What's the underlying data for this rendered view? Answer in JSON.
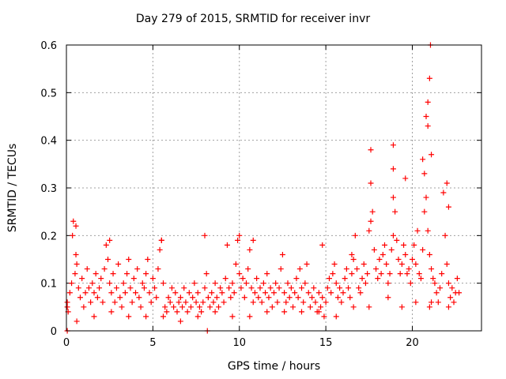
{
  "chart_data": {
    "type": "scatter",
    "title": "Day 279 of 2015, SRMTID for receiver invr",
    "xlabel": "GPS time / hours",
    "ylabel": "SRMTID / TECUs",
    "xlim": [
      0,
      24
    ],
    "ylim": [
      0,
      0.6
    ],
    "xticks": [
      0,
      5,
      10,
      15,
      20
    ],
    "yticks": [
      0,
      0.1,
      0.2,
      0.3,
      0.4,
      0.5,
      0.6
    ],
    "xtick_labels": [
      "0",
      "5",
      "10",
      "15",
      "20"
    ],
    "ytick_labels": [
      "0",
      "0.1",
      "0.2",
      "0.3",
      "0.4",
      "0.5",
      "0.6"
    ],
    "grid": true,
    "marker": "+",
    "series": [
      {
        "name": "SRMTID",
        "color": "#ff0000",
        "x": [
          0.05,
          0.1,
          0.2,
          0.3,
          0.35,
          0.4,
          0.5,
          0.55,
          0.6,
          0.7,
          0.8,
          0.9,
          1.0,
          1.1,
          1.2,
          1.3,
          1.4,
          1.5,
          1.6,
          1.7,
          1.8,
          1.9,
          2.0,
          2.1,
          2.2,
          2.3,
          2.4,
          2.5,
          2.6,
          2.7,
          2.8,
          2.9,
          3.0,
          3.1,
          3.2,
          3.3,
          3.4,
          3.5,
          3.6,
          3.7,
          3.8,
          3.9,
          4.0,
          4.1,
          4.2,
          4.3,
          4.4,
          4.5,
          4.6,
          4.7,
          4.8,
          4.9,
          5.0,
          5.1,
          5.2,
          5.3,
          5.4,
          5.5,
          5.6,
          5.7,
          5.8,
          5.9,
          6.0,
          6.1,
          6.2,
          6.3,
          6.4,
          6.5,
          6.6,
          6.7,
          6.8,
          6.9,
          7.0,
          7.1,
          7.2,
          7.3,
          7.4,
          7.5,
          7.6,
          7.7,
          7.8,
          7.9,
          8.0,
          8.1,
          8.2,
          8.3,
          8.4,
          8.5,
          8.6,
          8.7,
          8.8,
          8.9,
          9.0,
          9.1,
          9.2,
          9.3,
          9.4,
          9.5,
          9.6,
          9.7,
          9.8,
          9.9,
          10.0,
          10.1,
          10.2,
          10.3,
          10.4,
          10.5,
          10.6,
          10.7,
          10.8,
          10.9,
          11.0,
          11.1,
          11.2,
          11.3,
          11.4,
          11.5,
          11.6,
          11.7,
          11.8,
          11.9,
          12.0,
          12.1,
          12.2,
          12.3,
          12.4,
          12.5,
          12.6,
          12.7,
          12.8,
          12.9,
          13.0,
          13.1,
          13.2,
          13.3,
          13.4,
          13.5,
          13.6,
          13.7,
          13.8,
          13.9,
          14.0,
          14.1,
          14.2,
          14.3,
          14.4,
          14.5,
          14.6,
          14.7,
          14.8,
          14.9,
          15.0,
          15.1,
          15.2,
          15.3,
          15.4,
          15.5,
          15.6,
          15.7,
          15.8,
          15.9,
          16.0,
          16.1,
          16.2,
          16.3,
          16.4,
          16.5,
          16.6,
          16.7,
          16.8,
          16.9,
          17.0,
          17.1,
          17.2,
          17.3,
          17.4,
          17.5,
          17.6,
          17.7,
          17.8,
          17.9,
          18.0,
          18.1,
          18.2,
          18.3,
          18.4,
          18.5,
          18.6,
          18.7,
          18.8,
          18.9,
          19.0,
          19.1,
          19.2,
          19.3,
          19.4,
          19.5,
          19.6,
          19.7,
          19.8,
          19.9,
          20.0,
          20.1,
          20.2,
          20.3,
          20.4,
          20.5,
          20.6,
          20.7,
          20.8,
          20.9,
          21.0,
          21.1,
          21.2,
          21.3,
          21.4,
          21.5,
          21.6,
          21.7,
          21.8,
          21.9,
          22.0,
          22.1,
          22.2,
          22.3,
          22.4,
          22.5,
          22.6,
          22.7,
          0.05,
          0.6,
          1.6,
          2.6,
          3.6,
          4.6,
          5.6,
          6.6,
          7.6,
          8.6,
          9.6,
          10.6,
          11.6,
          12.6,
          13.6,
          14.6,
          15.6,
          16.6,
          17.5,
          18.6,
          19.4,
          20.2,
          21.0,
          21.1,
          22.1,
          0.55,
          2.5,
          5.5,
          8.0,
          10.0,
          10.8,
          14.8,
          16.5,
          17.6,
          17.6,
          18.9,
          18.9,
          18.9,
          19.6,
          20.7,
          20.8,
          20.9,
          20.9,
          21.0,
          21.05,
          21.1,
          20.6,
          22.0,
          22.1,
          0.05,
          8.15
        ],
        "y": [
          0.06,
          0.04,
          0.08,
          0.1,
          0.2,
          0.23,
          0.12,
          0.16,
          0.14,
          0.09,
          0.07,
          0.11,
          0.05,
          0.08,
          0.13,
          0.09,
          0.06,
          0.1,
          0.08,
          0.12,
          0.07,
          0.09,
          0.11,
          0.06,
          0.13,
          0.18,
          0.15,
          0.1,
          0.08,
          0.12,
          0.06,
          0.09,
          0.14,
          0.07,
          0.05,
          0.1,
          0.08,
          0.12,
          0.15,
          0.09,
          0.06,
          0.11,
          0.08,
          0.13,
          0.07,
          0.05,
          0.1,
          0.09,
          0.12,
          0.15,
          0.08,
          0.06,
          0.11,
          0.09,
          0.07,
          0.13,
          0.17,
          0.19,
          0.1,
          0.05,
          0.04,
          0.07,
          0.06,
          0.09,
          0.05,
          0.08,
          0.04,
          0.06,
          0.07,
          0.05,
          0.09,
          0.06,
          0.04,
          0.08,
          0.05,
          0.07,
          0.1,
          0.06,
          0.08,
          0.05,
          0.04,
          0.06,
          0.09,
          0.12,
          0.07,
          0.05,
          0.08,
          0.06,
          0.1,
          0.07,
          0.05,
          0.09,
          0.08,
          0.06,
          0.11,
          0.18,
          0.09,
          0.07,
          0.1,
          0.08,
          0.14,
          0.19,
          0.12,
          0.09,
          0.11,
          0.07,
          0.1,
          0.13,
          0.17,
          0.09,
          0.06,
          0.08,
          0.11,
          0.07,
          0.09,
          0.06,
          0.1,
          0.08,
          0.12,
          0.07,
          0.09,
          0.05,
          0.08,
          0.1,
          0.06,
          0.09,
          0.13,
          0.16,
          0.08,
          0.06,
          0.1,
          0.07,
          0.09,
          0.05,
          0.08,
          0.11,
          0.07,
          0.13,
          0.09,
          0.06,
          0.1,
          0.14,
          0.08,
          0.05,
          0.07,
          0.09,
          0.06,
          0.04,
          0.08,
          0.05,
          0.07,
          0.03,
          0.06,
          0.09,
          0.11,
          0.08,
          0.12,
          0.14,
          0.1,
          0.07,
          0.09,
          0.06,
          0.08,
          0.11,
          0.13,
          0.09,
          0.07,
          0.12,
          0.15,
          0.2,
          0.13,
          0.09,
          0.08,
          0.11,
          0.14,
          0.1,
          0.12,
          0.21,
          0.23,
          0.25,
          0.17,
          0.13,
          0.11,
          0.15,
          0.12,
          0.16,
          0.18,
          0.14,
          0.1,
          0.12,
          0.17,
          0.2,
          0.25,
          0.19,
          0.15,
          0.12,
          0.14,
          0.18,
          0.16,
          0.12,
          0.13,
          0.1,
          0.15,
          0.18,
          0.14,
          0.21,
          0.12,
          0.11,
          0.17,
          0.25,
          0.28,
          0.21,
          0.16,
          0.13,
          0.11,
          0.1,
          0.08,
          0.06,
          0.09,
          0.12,
          0.29,
          0.2,
          0.14,
          0.1,
          0.07,
          0.09,
          0.06,
          0.08,
          0.11,
          0.08,
          0.05,
          0.02,
          0.03,
          0.04,
          0.03,
          0.03,
          0.03,
          0.02,
          0.03,
          0.04,
          0.03,
          0.03,
          0.04,
          0.04,
          0.04,
          0.04,
          0.03,
          0.05,
          0.05,
          0.07,
          0.05,
          0.06,
          0.05,
          0.06,
          0.05,
          0.22,
          0.19,
          0.19,
          0.2,
          0.2,
          0.19,
          0.18,
          0.16,
          0.38,
          0.31,
          0.39,
          0.34,
          0.28,
          0.32,
          0.33,
          0.45,
          0.48,
          0.43,
          0.53,
          0.6,
          0.37,
          0.36,
          0.31,
          0.26,
          0.0,
          0.0
        ]
      }
    ]
  }
}
